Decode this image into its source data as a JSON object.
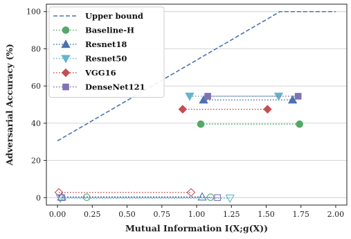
{
  "chart_data": {
    "type": "line",
    "xlabel": "Mutual Information I(X;g(X))",
    "ylabel": "Adversarial Accuracy (%)",
    "xlim": [
      -0.08,
      2.08
    ],
    "ylim": [
      -4,
      104
    ],
    "x_ticks": [
      0.0,
      0.25,
      0.5,
      0.75,
      1.0,
      1.25,
      1.5,
      1.75,
      2.0
    ],
    "x_tick_labels": [
      "0.00",
      "0.25",
      "0.50",
      "0.75",
      "1.00",
      "1.25",
      "1.50",
      "1.75",
      "2.00"
    ],
    "y_ticks": [
      0,
      20,
      40,
      60,
      80,
      100
    ],
    "y_tick_labels": [
      "0",
      "20",
      "40",
      "60",
      "80",
      "100"
    ],
    "grid": "horizontal",
    "legend_position": "top-left",
    "series": [
      {
        "name": "Upper bound",
        "style": "dashed",
        "marker": "none",
        "color": "#4c72b0",
        "x": [
          0.0,
          1.6,
          2.0
        ],
        "y": [
          30.5,
          100,
          100
        ]
      },
      {
        "name": "Baseline-H",
        "style": "dotted",
        "marker": "circle",
        "color": "#55a868",
        "segments": [
          {
            "filled": true,
            "x": [
              1.03,
              1.74
            ],
            "y": [
              39.5,
              39.5
            ]
          },
          {
            "filled": false,
            "x": [
              0.21,
              1.1
            ],
            "y": [
              0.2,
              0.2
            ]
          }
        ]
      },
      {
        "name": "Resnet18",
        "style": "dotted",
        "marker": "triangle-up",
        "color": "#4c72b0",
        "segments": [
          {
            "filled": true,
            "x": [
              1.05,
              1.69
            ],
            "y": [
              52.5,
              52.5
            ]
          },
          {
            "filled": false,
            "x": [
              0.03,
              1.04
            ],
            "y": [
              0.4,
              0.4
            ]
          }
        ]
      },
      {
        "name": "Resnet50",
        "style": "dotted",
        "marker": "triangle-down",
        "color": "#64b5cd",
        "segments": [
          {
            "filled": true,
            "x": [
              0.95,
              1.59
            ],
            "y": [
              54.5,
              54.5
            ]
          },
          {
            "filled": false,
            "x": [
              0.02,
              1.24
            ],
            "y": [
              -0.3,
              -0.3
            ]
          }
        ]
      },
      {
        "name": "VGG16",
        "style": "dotted",
        "marker": "diamond",
        "color": "#c44e52",
        "segments": [
          {
            "filled": true,
            "x": [
              0.9,
              1.51
            ],
            "y": [
              47.5,
              47.5
            ]
          },
          {
            "filled": false,
            "x": [
              0.01,
              0.96
            ],
            "y": [
              2.8,
              2.8
            ]
          }
        ]
      },
      {
        "name": "DenseNet121",
        "style": "dotted",
        "marker": "square",
        "color": "#8172b3",
        "segments": [
          {
            "filled": true,
            "x": [
              1.08,
              1.73
            ],
            "y": [
              54.5,
              54.5
            ]
          },
          {
            "filled": false,
            "x": [
              0.03,
              1.15
            ],
            "y": [
              0.0,
              0.0
            ]
          }
        ]
      }
    ]
  }
}
